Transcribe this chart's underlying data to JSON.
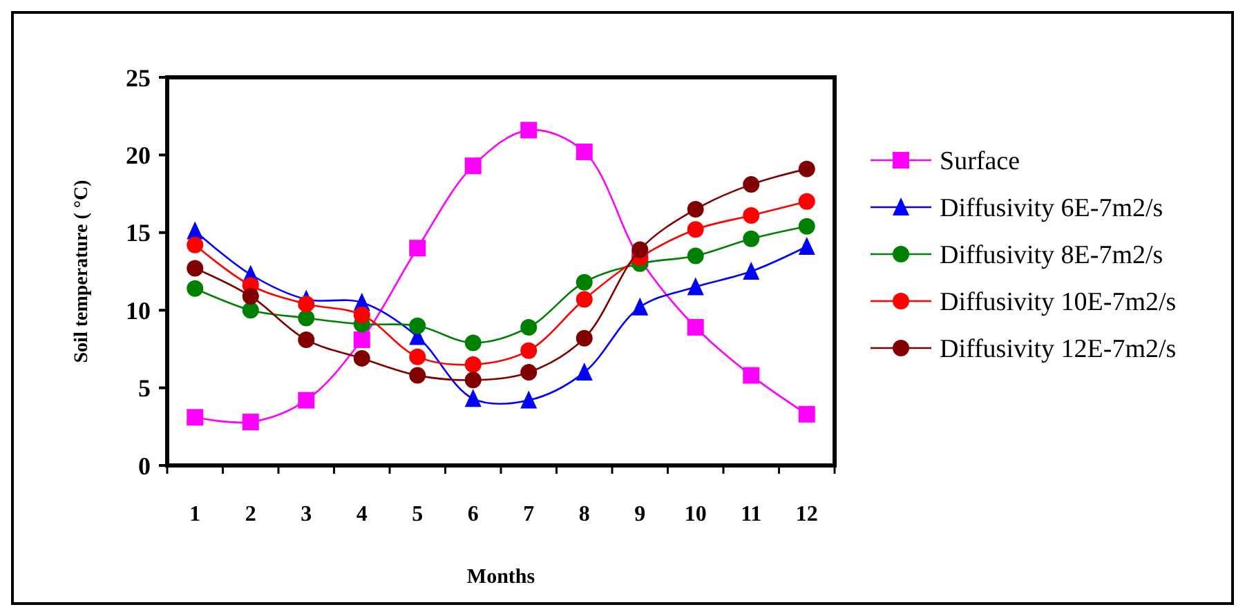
{
  "chart_data": {
    "type": "line",
    "xlabel": "Months",
    "ylabel": "Soil temperature ( °C)",
    "x": [
      1,
      2,
      3,
      4,
      5,
      6,
      7,
      8,
      9,
      10,
      11,
      12
    ],
    "xlim": [
      0.5,
      12.5
    ],
    "xticks": [
      {
        "value": 0.5,
        "label": null
      },
      1,
      {
        "value": 1.5,
        "label": null
      },
      2,
      {
        "value": 2.5,
        "label": null
      },
      3,
      {
        "value": 3.5,
        "label": null
      },
      4,
      {
        "value": 4.5,
        "label": null
      },
      5,
      {
        "value": 5.5,
        "label": null
      },
      6,
      {
        "value": 6.5,
        "label": null
      },
      7,
      {
        "value": 7.5,
        "label": null
      },
      8,
      {
        "value": 8.5,
        "label": null
      },
      9,
      {
        "value": 9.5,
        "label": null
      },
      10,
      {
        "value": 10.5,
        "label": null
      },
      11,
      {
        "value": 11.5,
        "label": null
      },
      12,
      {
        "value": 12.5,
        "label": null
      }
    ],
    "series": [
      {
        "name": "Surface",
        "color": "#ff00ff",
        "marker": "square",
        "values": [
          3.1,
          2.8,
          4.2,
          8.1,
          14.0,
          19.3,
          21.6,
          20.2,
          13.3,
          8.9,
          5.8,
          3.3
        ]
      },
      {
        "name": "Diffusivity 6E-7m2/s",
        "color": "#0000ff",
        "marker": "triangle",
        "values": [
          15.1,
          12.3,
          10.7,
          10.5,
          8.3,
          4.3,
          4.2,
          6.0,
          10.2,
          11.5,
          12.5,
          14.1
        ]
      },
      {
        "name": "Diffusivity 8E-7m2/s",
        "color": "#008000",
        "marker": "circle",
        "values": [
          11.4,
          10.0,
          9.5,
          9.1,
          9.0,
          7.9,
          8.9,
          11.8,
          13.0,
          13.5,
          14.6,
          15.4
        ]
      },
      {
        "name": "Diffusivity 10E-7m2/s",
        "color": "#ff0000",
        "marker": "circle",
        "values": [
          14.2,
          11.6,
          10.4,
          9.7,
          7.0,
          6.5,
          7.4,
          10.7,
          13.4,
          15.2,
          16.1,
          17.0
        ]
      },
      {
        "name": "Diffusivity 12E-7m2/s",
        "color": "#800000",
        "marker": "circle",
        "values": [
          12.7,
          10.9,
          8.1,
          6.9,
          5.8,
          5.5,
          6.0,
          8.2,
          13.9,
          16.5,
          18.1,
          19.1
        ]
      }
    ],
    "ylim": [
      0,
      25
    ],
    "yticks": [
      0,
      5,
      10,
      15,
      20,
      25
    ],
    "legend": "right",
    "grid": false
  }
}
